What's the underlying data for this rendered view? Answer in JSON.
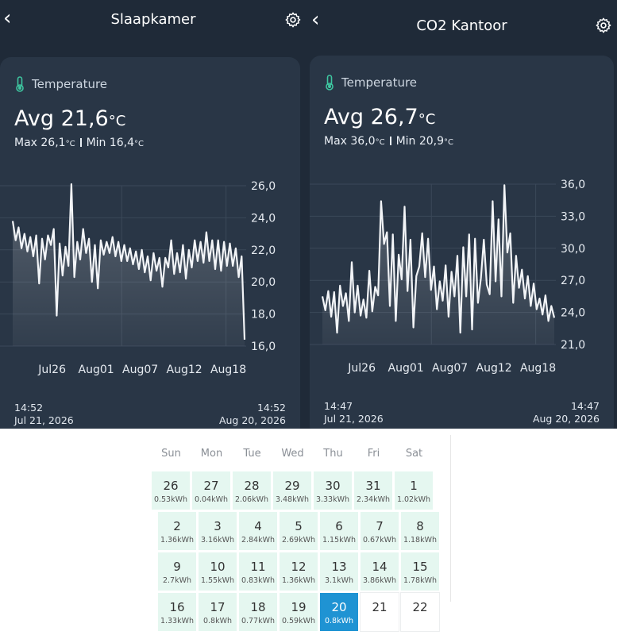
{
  "left": {
    "title": "Slaapkamer",
    "sensor": "Temperature",
    "avg": "Avg 21,6",
    "unit": "°C",
    "max": "Max 26,1",
    "min": "Min 16,4",
    "start_time": "14:52",
    "start_date": "Jul 21, 2026",
    "end_time": "14:52",
    "end_date": "Aug 20, 2026"
  },
  "right": {
    "title": "CO2 Kantoor",
    "sensor": "Temperature",
    "avg": "Avg 26,7",
    "unit": "°C",
    "max": "Max 36,0",
    "min": "Min 20,9",
    "start_time": "14:47",
    "start_date": "Jul 21, 2026",
    "end_time": "14:47",
    "end_date": "Aug 20, 2026"
  },
  "icons": {
    "back": "chevron-left-icon",
    "settings": "gear-icon",
    "sensor": "thermometer-icon"
  },
  "colors": {
    "panel": "#1f2a38",
    "card": "#293646",
    "accent": "#3ec6a0",
    "cal_cell": "#e5f7f0",
    "cal_today": "#1f93d3"
  },
  "chart_data": [
    {
      "type": "line",
      "x_tick_labels": [
        "Jul26",
        "Aug01",
        "Aug07",
        "Aug12",
        "Aug18"
      ],
      "y_ticks": [
        16.0,
        18.0,
        20.0,
        22.0,
        24.0,
        26.0
      ],
      "y_tick_labels": [
        "16,0",
        "18,0",
        "20,0",
        "22,0",
        "24,0",
        "26,0"
      ],
      "ylim": [
        16.0,
        26.0
      ],
      "x_range": [
        "Jul 21, 2026",
        "Aug 20, 2026"
      ],
      "grid": true,
      "series": [
        {
          "values": [
            23.8,
            22.6,
            23.4,
            22.1,
            23.0,
            21.9,
            22.8,
            21.6,
            22.9,
            19.9,
            22.7,
            21.4,
            22.9,
            22.3,
            23.3,
            17.9,
            22.4,
            20.4,
            22.2,
            21.0,
            26.1,
            20.3,
            22.5,
            21.4,
            23.3,
            21.8,
            22.7,
            20.0,
            22.3,
            19.6,
            22.6,
            21.7,
            22.5,
            21.8,
            22.8,
            21.6,
            22.5,
            21.3,
            22.3,
            21.3,
            22.1,
            21.1,
            21.9,
            20.8,
            22.0,
            20.6,
            21.6,
            20.1,
            21.8,
            20.7,
            21.5,
            19.7,
            21.5,
            20.9,
            22.6,
            20.5,
            21.8,
            20.6,
            22.3,
            20.2,
            22.0,
            20.9,
            22.6,
            21.3,
            22.5,
            21.2,
            23.1,
            21.3,
            22.6,
            20.8,
            22.6,
            20.7,
            22.5,
            21.0,
            22.4,
            21.0,
            22.1,
            20.3,
            21.6,
            16.4
          ]
        }
      ]
    },
    {
      "type": "line",
      "x_tick_labels": [
        "Jul26",
        "Aug01",
        "Aug07",
        "Aug12",
        "Aug18"
      ],
      "y_ticks": [
        21.0,
        24.0,
        27.0,
        30.0,
        33.0,
        36.0
      ],
      "y_tick_labels": [
        "21,0",
        "24,0",
        "27,0",
        "30,0",
        "33,0",
        "36,0"
      ],
      "ylim": [
        21.0,
        36.0
      ],
      "x_range": [
        "Jul 21, 2026",
        "Aug 20, 2026"
      ],
      "grid": true,
      "series": [
        {
          "values": [
            25.5,
            24.2,
            26.0,
            23.6,
            25.9,
            22.1,
            26.5,
            24.6,
            25.8,
            23.2,
            28.7,
            24.0,
            26.5,
            23.7,
            25.2,
            23.5,
            27.9,
            24.1,
            26.4,
            25.6,
            34.4,
            30.4,
            31.5,
            24.6,
            31.3,
            23.2,
            29.4,
            27.1,
            33.9,
            26.0,
            30.8,
            22.6,
            27.4,
            28.3,
            31.4,
            27.3,
            30.9,
            26.1,
            28.3,
            24.3,
            26.9,
            25.1,
            28.4,
            23.6,
            27.8,
            25.5,
            29.3,
            22.1,
            30.1,
            25.5,
            31.3,
            22.4,
            30.9,
            24.9,
            27.2,
            30.8,
            26.6,
            25.7,
            34.4,
            26.9,
            32.7,
            25.5,
            35.9,
            29.6,
            31.4,
            24.9,
            29.3,
            26.3,
            28.0,
            25.3,
            27.4,
            24.6,
            26.7,
            24.3,
            25.3,
            23.8,
            25.6,
            23.2,
            24.6,
            23.5
          ]
        }
      ]
    }
  ],
  "calendar": {
    "weekdays": [
      "Sun",
      "Mon",
      "Tue",
      "Wed",
      "Thu",
      "Fri",
      "Sat"
    ],
    "weeks": [
      [
        {
          "day": "26",
          "kwh": "0.53kWh"
        },
        {
          "day": "27",
          "kwh": "0.04kWh"
        },
        {
          "day": "28",
          "kwh": "2.06kWh"
        },
        {
          "day": "29",
          "kwh": "3.48kWh"
        },
        {
          "day": "30",
          "kwh": "3.33kWh"
        },
        {
          "day": "31",
          "kwh": "2.34kWh"
        },
        {
          "day": "1",
          "kwh": "1.02kWh"
        }
      ],
      [
        {
          "day": "2",
          "kwh": "1.36kWh"
        },
        {
          "day": "3",
          "kwh": "3.16kWh"
        },
        {
          "day": "4",
          "kwh": "2.84kWh"
        },
        {
          "day": "5",
          "kwh": "2.69kWh"
        },
        {
          "day": "6",
          "kwh": "1.15kWh"
        },
        {
          "day": "7",
          "kwh": "0.67kWh"
        },
        {
          "day": "8",
          "kwh": "1.18kWh"
        }
      ],
      [
        {
          "day": "9",
          "kwh": "2.7kWh"
        },
        {
          "day": "10",
          "kwh": "1.55kWh"
        },
        {
          "day": "11",
          "kwh": "0.83kWh"
        },
        {
          "day": "12",
          "kwh": "1.36kWh"
        },
        {
          "day": "13",
          "kwh": "3.1kWh"
        },
        {
          "day": "14",
          "kwh": "3.86kWh"
        },
        {
          "day": "15",
          "kwh": "1.78kWh"
        }
      ],
      [
        {
          "day": "16",
          "kwh": "1.33kWh"
        },
        {
          "day": "17",
          "kwh": "0.8kWh"
        },
        {
          "day": "18",
          "kwh": "0.77kWh"
        },
        {
          "day": "19",
          "kwh": "0.59kWh"
        },
        {
          "day": "20",
          "kwh": "0.8kWh",
          "today": true
        },
        {
          "day": "21",
          "kwh": ""
        },
        {
          "day": "22",
          "kwh": ""
        }
      ]
    ]
  }
}
